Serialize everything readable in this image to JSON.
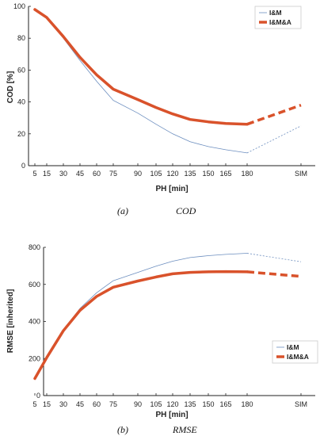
{
  "chart_data": [
    {
      "type": "line",
      "panel": "a",
      "caption_letter": "(a)",
      "caption_title": "COD",
      "xlabel": "PH [min]",
      "ylabel": "COD  [%]",
      "x_ticks": [
        "5",
        "15",
        "30",
        "45",
        "60",
        "75",
        "90",
        "105",
        "120",
        "135",
        "150",
        "165",
        "180",
        "SIM"
      ],
      "y_ticks": [
        "0",
        "20",
        "40",
        "60",
        "80",
        "100"
      ],
      "ylim": [
        0,
        100
      ],
      "legend_position": "top-right",
      "series": [
        {
          "name": "I&M",
          "color": "#6c8ebf",
          "values": [
            98,
            93,
            80,
            66,
            53,
            41,
            33,
            26,
            20,
            15,
            12,
            10,
            8,
            25
          ]
        },
        {
          "name": "I&M&A",
          "color": "#d9522b",
          "values": [
            98,
            93,
            81,
            68,
            57,
            48,
            41.5,
            36.5,
            32.5,
            29,
            27.5,
            26.5,
            26,
            38
          ]
        }
      ]
    },
    {
      "type": "line",
      "panel": "b",
      "caption_letter": "(b)",
      "caption_title": "RMSE",
      "xlabel": "PH [min]",
      "ylabel": "RMSE  [inherited]",
      "x_ticks": [
        "5",
        "15",
        "30",
        "45",
        "60",
        "75",
        "90",
        "105",
        "120",
        "135",
        "150",
        "165",
        "180",
        "SIM"
      ],
      "y_ticks": [
        "0",
        "200",
        "400",
        "600",
        "800"
      ],
      "ylim": [
        0,
        800
      ],
      "legend_position": "right",
      "series": [
        {
          "name": "I&M",
          "color": "#6c8ebf",
          "values": [
            95,
            210,
            355,
            470,
            555,
            620,
            665,
            698,
            725,
            745,
            755,
            762,
            768,
            722
          ]
        },
        {
          "name": "I&M&A",
          "color": "#d9522b",
          "values": [
            92,
            205,
            350,
            460,
            535,
            585,
            618,
            640,
            657,
            665,
            668,
            669,
            668,
            643
          ]
        }
      ]
    }
  ]
}
